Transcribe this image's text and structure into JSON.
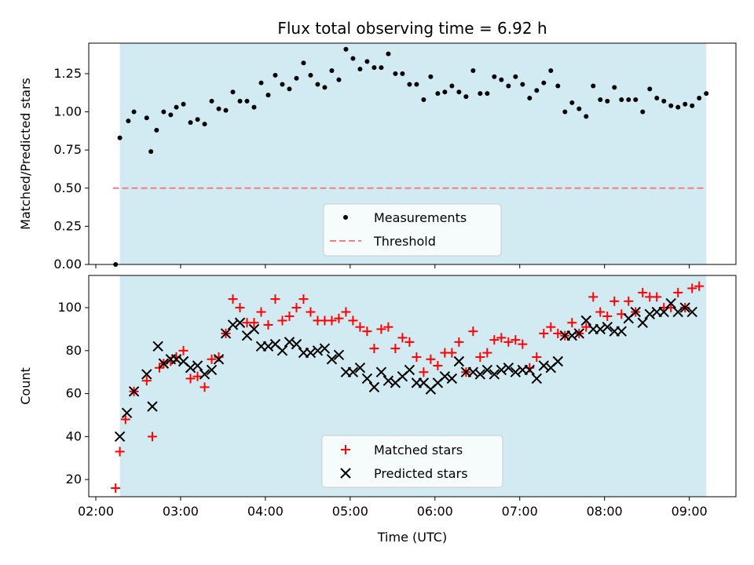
{
  "chart_data": [
    {
      "type": "scatter",
      "title": "Flux total observing time = 6.92 h",
      "xlabel": "",
      "ylabel": "Matched/Predicted stars",
      "ylim": [
        0,
        1.45
      ],
      "yticks": [
        "0.00",
        "0.25",
        "0.50",
        "0.75",
        "1.00",
        "1.25"
      ],
      "xlim": [
        "01:55",
        "09:33"
      ],
      "highlight_span": [
        "02:17",
        "09:12"
      ],
      "highlight_color": "#add8e6",
      "threshold": {
        "name": "Threshold",
        "value": 0.5,
        "x_range": [
          "02:12",
          "09:12"
        ],
        "color": "#f08080"
      },
      "legend": {
        "position": "bottom-center",
        "entries": [
          "Measurements",
          "Threshold"
        ]
      },
      "series": [
        {
          "name": "Measurements",
          "color": "#000000",
          "points": [
            [
              "02:14",
              0.0
            ],
            [
              "02:17",
              0.83
            ],
            [
              "02:23",
              0.94
            ],
            [
              "02:27",
              1.0
            ],
            [
              "02:36",
              0.96
            ],
            [
              "02:39",
              0.74
            ],
            [
              "02:43",
              0.88
            ],
            [
              "02:48",
              1.0
            ],
            [
              "02:53",
              0.98
            ],
            [
              "02:57",
              1.03
            ],
            [
              "03:02",
              1.05
            ],
            [
              "03:07",
              0.93
            ],
            [
              "03:12",
              0.95
            ],
            [
              "03:17",
              0.92
            ],
            [
              "03:22",
              1.07
            ],
            [
              "03:27",
              1.02
            ],
            [
              "03:32",
              1.01
            ],
            [
              "03:37",
              1.13
            ],
            [
              "03:42",
              1.07
            ],
            [
              "03:47",
              1.07
            ],
            [
              "03:52",
              1.03
            ],
            [
              "03:57",
              1.19
            ],
            [
              "04:02",
              1.11
            ],
            [
              "04:07",
              1.24
            ],
            [
              "04:12",
              1.18
            ],
            [
              "04:17",
              1.15
            ],
            [
              "04:22",
              1.22
            ],
            [
              "04:27",
              1.32
            ],
            [
              "04:32",
              1.24
            ],
            [
              "04:37",
              1.18
            ],
            [
              "04:42",
              1.16
            ],
            [
              "04:47",
              1.27
            ],
            [
              "04:52",
              1.21
            ],
            [
              "04:57",
              1.41
            ],
            [
              "05:02",
              1.35
            ],
            [
              "05:07",
              1.28
            ],
            [
              "05:12",
              1.33
            ],
            [
              "05:17",
              1.29
            ],
            [
              "05:22",
              1.29
            ],
            [
              "05:27",
              1.38
            ],
            [
              "05:32",
              1.25
            ],
            [
              "05:37",
              1.25
            ],
            [
              "05:42",
              1.18
            ],
            [
              "05:47",
              1.18
            ],
            [
              "05:52",
              1.08
            ],
            [
              "05:57",
              1.23
            ],
            [
              "06:02",
              1.12
            ],
            [
              "06:07",
              1.13
            ],
            [
              "06:12",
              1.17
            ],
            [
              "06:17",
              1.13
            ],
            [
              "06:22",
              1.1
            ],
            [
              "06:27",
              1.27
            ],
            [
              "06:32",
              1.12
            ],
            [
              "06:37",
              1.12
            ],
            [
              "06:42",
              1.23
            ],
            [
              "06:47",
              1.21
            ],
            [
              "06:52",
              1.17
            ],
            [
              "06:57",
              1.23
            ],
            [
              "07:02",
              1.18
            ],
            [
              "07:07",
              1.09
            ],
            [
              "07:12",
              1.14
            ],
            [
              "07:17",
              1.19
            ],
            [
              "07:22",
              1.27
            ],
            [
              "07:27",
              1.17
            ],
            [
              "07:32",
              1.0
            ],
            [
              "07:37",
              1.06
            ],
            [
              "07:42",
              1.02
            ],
            [
              "07:47",
              0.97
            ],
            [
              "07:52",
              1.17
            ],
            [
              "07:57",
              1.08
            ],
            [
              "08:02",
              1.07
            ],
            [
              "08:07",
              1.16
            ],
            [
              "08:12",
              1.08
            ],
            [
              "08:17",
              1.08
            ],
            [
              "08:22",
              1.08
            ],
            [
              "08:27",
              1.0
            ],
            [
              "08:32",
              1.15
            ],
            [
              "08:37",
              1.09
            ],
            [
              "08:42",
              1.07
            ],
            [
              "08:47",
              1.04
            ],
            [
              "08:52",
              1.03
            ],
            [
              "08:57",
              1.05
            ],
            [
              "09:02",
              1.04
            ],
            [
              "09:07",
              1.09
            ],
            [
              "09:12",
              1.12
            ]
          ]
        }
      ]
    },
    {
      "type": "scatter",
      "title": "",
      "xlabel": "Time (UTC)",
      "ylabel": "Count",
      "ylim": [
        12,
        115
      ],
      "yticks": [
        "20",
        "40",
        "60",
        "80",
        "100"
      ],
      "xlim": [
        "01:55",
        "09:33"
      ],
      "xticks": [
        "02:00",
        "03:00",
        "04:00",
        "05:00",
        "06:00",
        "07:00",
        "08:00",
        "09:00"
      ],
      "highlight_span": [
        "02:17",
        "09:12"
      ],
      "highlight_color": "#add8e6",
      "legend": {
        "position": "bottom-center",
        "entries": [
          "Matched stars",
          "Predicted stars"
        ]
      },
      "series": [
        {
          "name": "Matched stars",
          "marker": "plus",
          "color": "#ff0000",
          "points": [
            [
              "02:14",
              16
            ],
            [
              "02:17",
              33
            ],
            [
              "02:21",
              48
            ],
            [
              "02:27",
              61
            ],
            [
              "02:36",
              66
            ],
            [
              "02:40",
              40
            ],
            [
              "02:45",
              72
            ],
            [
              "02:48",
              74
            ],
            [
              "02:53",
              75
            ],
            [
              "02:57",
              77
            ],
            [
              "03:02",
              80
            ],
            [
              "03:07",
              67
            ],
            [
              "03:12",
              68
            ],
            [
              "03:17",
              63
            ],
            [
              "03:22",
              76
            ],
            [
              "03:27",
              77
            ],
            [
              "03:32",
              88
            ],
            [
              "03:37",
              104
            ],
            [
              "03:42",
              100
            ],
            [
              "03:47",
              93
            ],
            [
              "03:52",
              93
            ],
            [
              "03:57",
              98
            ],
            [
              "04:02",
              92
            ],
            [
              "04:07",
              104
            ],
            [
              "04:12",
              94
            ],
            [
              "04:17",
              96
            ],
            [
              "04:22",
              100
            ],
            [
              "04:27",
              104
            ],
            [
              "04:32",
              98
            ],
            [
              "04:37",
              94
            ],
            [
              "04:42",
              94
            ],
            [
              "04:47",
              94
            ],
            [
              "04:52",
              95
            ],
            [
              "04:57",
              98
            ],
            [
              "05:02",
              94
            ],
            [
              "05:07",
              91
            ],
            [
              "05:12",
              89
            ],
            [
              "05:17",
              81
            ],
            [
              "05:22",
              90
            ],
            [
              "05:27",
              91
            ],
            [
              "05:32",
              81
            ],
            [
              "05:37",
              86
            ],
            [
              "05:42",
              84
            ],
            [
              "05:47",
              77
            ],
            [
              "05:52",
              70
            ],
            [
              "05:57",
              76
            ],
            [
              "06:02",
              73
            ],
            [
              "06:07",
              79
            ],
            [
              "06:12",
              79
            ],
            [
              "06:17",
              84
            ],
            [
              "06:22",
              70
            ],
            [
              "06:27",
              89
            ],
            [
              "06:32",
              77
            ],
            [
              "06:37",
              79
            ],
            [
              "06:42",
              85
            ],
            [
              "06:47",
              86
            ],
            [
              "06:52",
              84
            ],
            [
              "06:57",
              85
            ],
            [
              "07:02",
              83
            ],
            [
              "07:07",
              72
            ],
            [
              "07:12",
              77
            ],
            [
              "07:17",
              88
            ],
            [
              "07:22",
              91
            ],
            [
              "07:27",
              88
            ],
            [
              "07:32",
              87
            ],
            [
              "07:37",
              93
            ],
            [
              "07:42",
              88
            ],
            [
              "07:47",
              91
            ],
            [
              "07:52",
              105
            ],
            [
              "07:57",
              98
            ],
            [
              "08:02",
              96
            ],
            [
              "08:07",
              103
            ],
            [
              "08:12",
              97
            ],
            [
              "08:17",
              103
            ],
            [
              "08:22",
              98
            ],
            [
              "08:27",
              107
            ],
            [
              "08:32",
              105
            ],
            [
              "08:37",
              105
            ],
            [
              "08:42",
              100
            ],
            [
              "08:47",
              100
            ],
            [
              "08:52",
              107
            ],
            [
              "08:57",
              100
            ],
            [
              "09:02",
              109
            ],
            [
              "09:07",
              110
            ]
          ]
        },
        {
          "name": "Predicted stars",
          "marker": "x",
          "color": "#000000",
          "points": [
            [
              "02:17",
              40
            ],
            [
              "02:22",
              51
            ],
            [
              "02:27",
              61
            ],
            [
              "02:36",
              69
            ],
            [
              "02:40",
              54
            ],
            [
              "02:44",
              82
            ],
            [
              "02:48",
              74
            ],
            [
              "02:53",
              76
            ],
            [
              "02:57",
              76
            ],
            [
              "03:02",
              75
            ],
            [
              "03:07",
              72
            ],
            [
              "03:12",
              73
            ],
            [
              "03:17",
              69
            ],
            [
              "03:22",
              71
            ],
            [
              "03:27",
              76
            ],
            [
              "03:32",
              88
            ],
            [
              "03:37",
              92
            ],
            [
              "03:42",
              93
            ],
            [
              "03:47",
              87
            ],
            [
              "03:52",
              90
            ],
            [
              "03:57",
              82
            ],
            [
              "04:02",
              82
            ],
            [
              "04:07",
              83
            ],
            [
              "04:12",
              80
            ],
            [
              "04:17",
              84
            ],
            [
              "04:22",
              83
            ],
            [
              "04:27",
              79
            ],
            [
              "04:32",
              79
            ],
            [
              "04:37",
              80
            ],
            [
              "04:42",
              81
            ],
            [
              "04:47",
              76
            ],
            [
              "04:52",
              78
            ],
            [
              "04:57",
              70
            ],
            [
              "05:02",
              70
            ],
            [
              "05:07",
              72
            ],
            [
              "05:12",
              67
            ],
            [
              "05:17",
              63
            ],
            [
              "05:22",
              70
            ],
            [
              "05:27",
              66
            ],
            [
              "05:32",
              65
            ],
            [
              "05:37",
              68
            ],
            [
              "05:42",
              71
            ],
            [
              "05:47",
              65
            ],
            [
              "05:52",
              65
            ],
            [
              "05:57",
              62
            ],
            [
              "06:02",
              65
            ],
            [
              "06:07",
              68
            ],
            [
              "06:12",
              67
            ],
            [
              "06:17",
              75
            ],
            [
              "06:22",
              70
            ],
            [
              "06:27",
              70
            ],
            [
              "06:32",
              69
            ],
            [
              "06:37",
              71
            ],
            [
              "06:42",
              69
            ],
            [
              "06:47",
              71
            ],
            [
              "06:52",
              72
            ],
            [
              "06:57",
              70
            ],
            [
              "07:02",
              71
            ],
            [
              "07:07",
              71
            ],
            [
              "07:12",
              67
            ],
            [
              "07:17",
              73
            ],
            [
              "07:22",
              72
            ],
            [
              "07:27",
              75
            ],
            [
              "07:32",
              87
            ],
            [
              "07:37",
              87
            ],
            [
              "07:42",
              88
            ],
            [
              "07:47",
              94
            ],
            [
              "07:52",
              90
            ],
            [
              "07:57",
              90
            ],
            [
              "08:02",
              91
            ],
            [
              "08:07",
              89
            ],
            [
              "08:12",
              89
            ],
            [
              "08:17",
              95
            ],
            [
              "08:22",
              98
            ],
            [
              "08:27",
              93
            ],
            [
              "08:32",
              97
            ],
            [
              "08:37",
              98
            ],
            [
              "08:42",
              98
            ],
            [
              "08:47",
              102
            ],
            [
              "08:52",
              98
            ],
            [
              "08:57",
              100
            ],
            [
              "09:02",
              98
            ]
          ]
        }
      ]
    }
  ]
}
